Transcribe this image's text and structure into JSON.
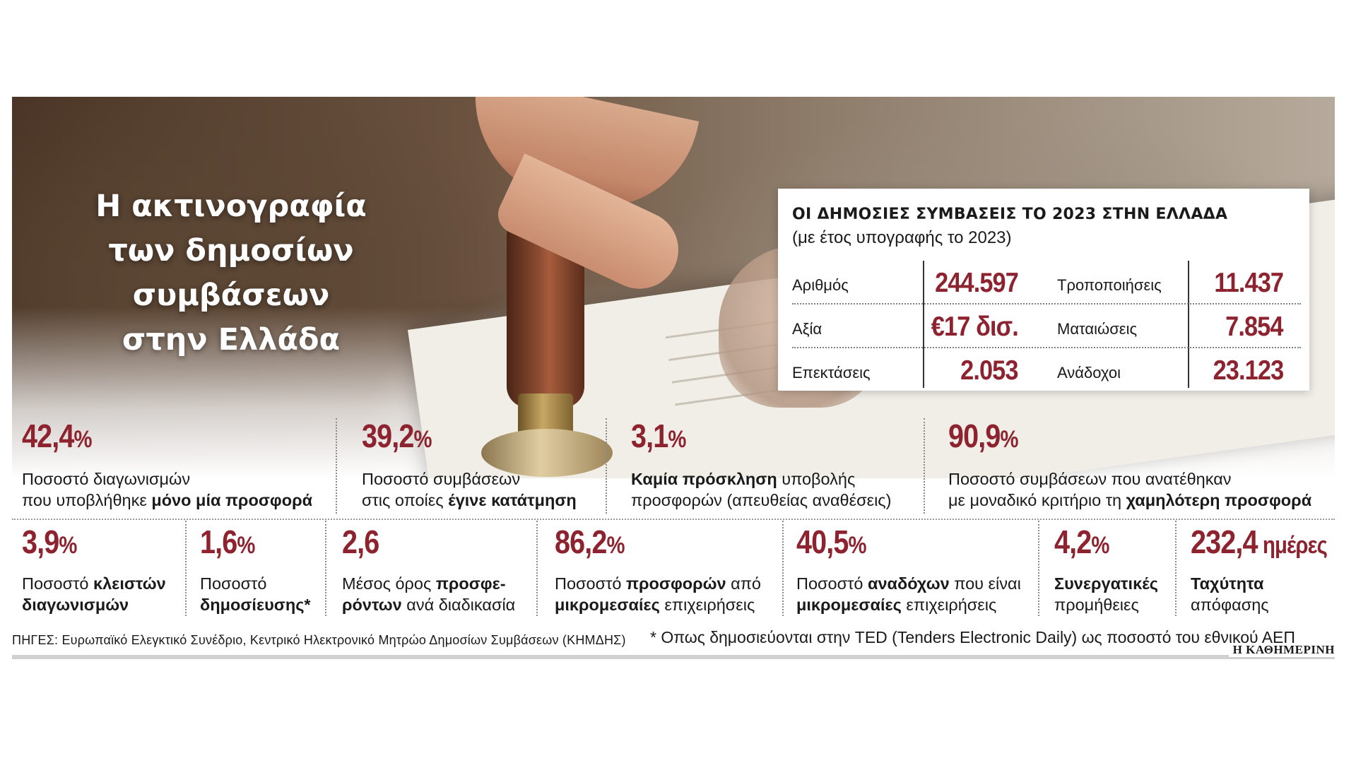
{
  "hero": {
    "title_lines": [
      "Η ακτινογραφία",
      "των δημοσίων",
      "συμβάσεων",
      "στην Ελλάδα"
    ]
  },
  "panel": {
    "title": "ΟΙ ΔΗΜΟΣΙΕΣ ΣΥΜΒΑΣΕΙΣ ΤΟ 2023 ΣΤΗΝ ΕΛΛΑΔΑ",
    "subtitle": "(με έτος υπογραφής το 2023)",
    "rows": [
      {
        "left_label": "Αριθμός",
        "left_value": "244.597",
        "right_label": "Τροποποιήσεις",
        "right_value": "11.437"
      },
      {
        "left_label": "Αξία",
        "left_value": "€17 δισ.",
        "right_label": "Ματαιώσεις",
        "right_value": "7.854"
      },
      {
        "left_label": "Επεκτάσεις",
        "left_value": "2.053",
        "right_label": "Ανάδοχοι",
        "right_value": "23.123"
      }
    ]
  },
  "stats_row1": [
    {
      "value": "42,4",
      "unit": "%",
      "line1_pre": "Ποσοστό διαγωνισμών",
      "line1_bold": "",
      "line2_pre": "που υποβλήθηκε ",
      "line2_bold": "μόνο μία προσφορά",
      "line2_post": ""
    },
    {
      "value": "39,2",
      "unit": "%",
      "line1_pre": "Ποσοστό συμβάσεων",
      "line1_bold": "",
      "line2_pre": "στις οποίες ",
      "line2_bold": "έγινε κατάτμηση",
      "line2_post": ""
    },
    {
      "value": "3,1",
      "unit": "%",
      "line1_pre": "",
      "line1_bold": "Καμία πρόσκληση",
      "line1_post": " υποβολής",
      "line2_pre": "προσφορών (απευθείας αναθέσεις)",
      "line2_bold": "",
      "line2_post": ""
    },
    {
      "value": "90,9",
      "unit": "%",
      "line1_pre": "Ποσοστό συμβάσεων που ανατέθηκαν",
      "line1_bold": "",
      "line2_pre": "με μοναδικό κριτήριο τη ",
      "line2_bold": "χαμηλότερη προσφορά",
      "line2_post": ""
    }
  ],
  "stats_row2": [
    {
      "value": "3,9",
      "unit": "%",
      "line1_pre": "Ποσοστό ",
      "line1_bold": "κλειστών",
      "line1_post": "",
      "line2_pre": "",
      "line2_bold": "διαγωνισμών",
      "line2_post": ""
    },
    {
      "value": "1,6",
      "unit": "%",
      "line1_pre": "Ποσοστό",
      "line1_bold": "",
      "line1_post": "",
      "line2_pre": "",
      "line2_bold": "δημοσίευσης*",
      "line2_post": ""
    },
    {
      "value": "2,6",
      "unit": "",
      "line1_pre": "Μέσος όρος ",
      "line1_bold": "προσφε-",
      "line1_post": "",
      "line2_pre": "",
      "line2_bold": "ρόντων",
      "line2_post": " ανά διαδικασία"
    },
    {
      "value": "86,2",
      "unit": "%",
      "line1_pre": "Ποσοστό ",
      "line1_bold": "προσφορών",
      "line1_post": " από",
      "line2_pre": "",
      "line2_bold": "μικρομεσαίες",
      "line2_post": " επιχειρήσεις"
    },
    {
      "value": "40,5",
      "unit": "%",
      "line1_pre": "Ποσοστό ",
      "line1_bold": "αναδόχων",
      "line1_post": " που είναι",
      "line2_pre": "",
      "line2_bold": "μικρομεσαίες",
      "line2_post": " επιχειρήσεις"
    },
    {
      "value": "4,2",
      "unit": "%",
      "line1_pre": "",
      "line1_bold": "Συνεργατικές",
      "line1_post": "",
      "line2_pre": "προμήθειες",
      "line2_bold": "",
      "line2_post": ""
    },
    {
      "value": "232,4",
      "unit": " ημέρες",
      "line1_pre": "",
      "line1_bold": "Ταχύτητα",
      "line1_post": "",
      "line2_pre": "απόφασης",
      "line2_bold": "",
      "line2_post": ""
    }
  ],
  "footer": {
    "sources": "ΠΗΓΕΣ: Ευρωπαϊκό Ελεγκτικό Συνέδριο, Κεντρικό Ηλεκτρονικό Μητρώο Δημοσίων Συμβάσεων (ΚΗΜΔΗΣ)",
    "note": "* Οπως δημοσιεύονται στην TED  (Tenders Electronic Daily) ως ποσοστό του εθνικού ΑΕΠ",
    "brand": "Η ΚΑΘΗΜΕΡΙΝΗ"
  },
  "colors": {
    "accent": "#8e2330",
    "text": "#1a1a1a"
  }
}
